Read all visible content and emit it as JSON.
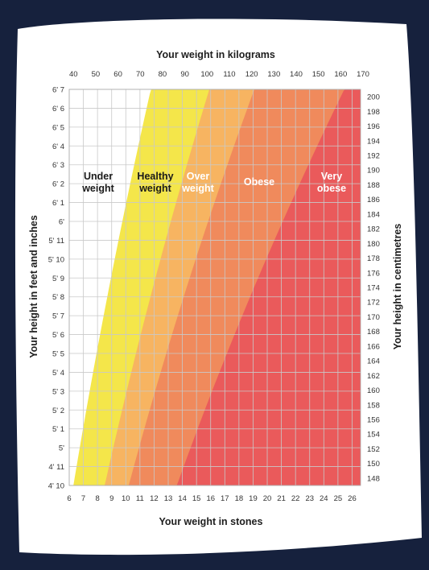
{
  "chart_data": {
    "type": "area",
    "title": "",
    "top_axis_label": "Your weight in kilograms",
    "bottom_axis_label": "Your weight in stones",
    "left_axis_label": "Your height in feet and inches",
    "right_axis_label": "Your height in centimetres",
    "x_bottom": {
      "unit": "st",
      "range": [
        6,
        26.6
      ],
      "ticks": [
        "6",
        "7",
        "8",
        "9",
        "10",
        "11",
        "12",
        "13",
        "14",
        "15",
        "16",
        "17",
        "18",
        "19",
        "20",
        "21",
        "22",
        "23",
        "24",
        "25",
        "26"
      ]
    },
    "x_top": {
      "unit": "kg",
      "ticks": [
        40,
        50,
        60,
        70,
        80,
        90,
        100,
        110,
        120,
        130,
        140,
        150,
        160,
        170
      ]
    },
    "y_left": {
      "unit": "ft/in",
      "ticks": [
        "4' 10",
        "4' 11",
        "5'",
        "5' 1",
        "5' 2",
        "5' 3",
        "5' 4",
        "5' 5",
        "5' 6",
        "5' 7",
        "5' 8",
        "5' 9",
        "5' 10",
        "5' 11",
        "6'",
        "6' 1",
        "6' 2",
        "6' 3",
        "6' 4",
        "6' 5",
        "6' 6",
        "6' 7"
      ]
    },
    "y_right": {
      "unit": "cm",
      "range": [
        147,
        201
      ],
      "ticks": [
        148,
        150,
        152,
        154,
        156,
        158,
        160,
        162,
        164,
        166,
        168,
        170,
        172,
        174,
        176,
        178,
        180,
        182,
        184,
        186,
        188,
        190,
        192,
        194,
        196,
        198,
        200
      ]
    },
    "grid": true,
    "zones": [
      {
        "key": "under",
        "label": "Under weight",
        "bmi_range": [
          0,
          18.5
        ],
        "color": "#ffffff"
      },
      {
        "key": "healthy",
        "label": "Healthy weight",
        "bmi_range": [
          18.5,
          25
        ],
        "color": "#f4e64a"
      },
      {
        "key": "over",
        "label": "Over weight",
        "bmi_range": [
          25,
          30
        ],
        "color": "#f7b461"
      },
      {
        "key": "obese",
        "label": "Obese",
        "bmi_range": [
          30,
          40
        ],
        "color": "#f08a5c"
      },
      {
        "key": "very",
        "label": "Very obese",
        "bmi_range": [
          40,
          99
        ],
        "color": "#ea5a5b"
      }
    ]
  },
  "colors": {
    "background": "#16213d",
    "card": "#ffffff",
    "grid": "#c9c9c9",
    "healthy_text": "#1a1a1a",
    "light_text": "#ffffff"
  }
}
